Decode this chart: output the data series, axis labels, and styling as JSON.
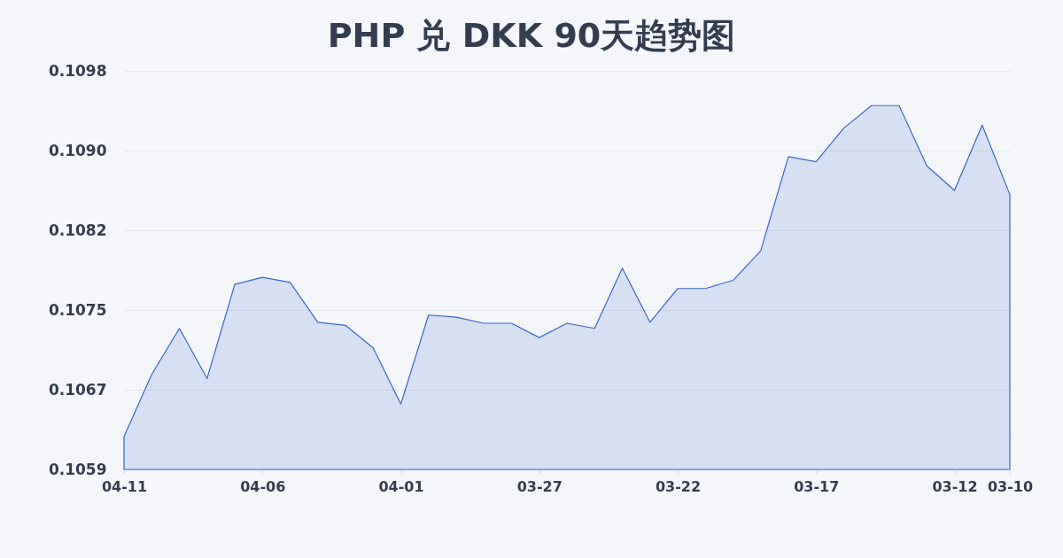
{
  "chart_data": {
    "type": "area",
    "title": "PHP 兑 DKK 90天趋势图",
    "categories": [
      "04-11",
      null,
      null,
      null,
      null,
      "04-06",
      null,
      null,
      null,
      null,
      "04-01",
      null,
      null,
      null,
      null,
      "03-27",
      null,
      null,
      null,
      null,
      "03-22",
      null,
      null,
      null,
      null,
      "03-17",
      null,
      null,
      null,
      null,
      "03-12",
      null,
      "03-10"
    ],
    "values": [
      0.10622,
      0.10683,
      0.10728,
      0.10679,
      0.10771,
      0.10778,
      0.10773,
      0.10734,
      0.10731,
      0.10709,
      0.10654,
      0.10741,
      0.10739,
      0.10733,
      0.10733,
      0.10719,
      0.10733,
      0.10728,
      0.10787,
      0.10734,
      0.10767,
      0.10767,
      0.10775,
      0.10804,
      0.10896,
      0.10891,
      0.10924,
      0.10946,
      0.10946,
      0.10887,
      0.10863,
      0.10927,
      0.10859
    ],
    "color": "#3366cc",
    "ylim": [
      0.1059,
      0.1098
    ],
    "yticks": [
      0.1059,
      {
        "value": 0.10668,
        "label": "0.1067"
      },
      {
        "value": 0.10746,
        "label": "0.1075"
      },
      {
        "value": 0.10824,
        "label": "0.1082"
      },
      {
        "value": 0.10902,
        "label": "0.1090"
      },
      0.1098
    ],
    "grid": "y"
  }
}
